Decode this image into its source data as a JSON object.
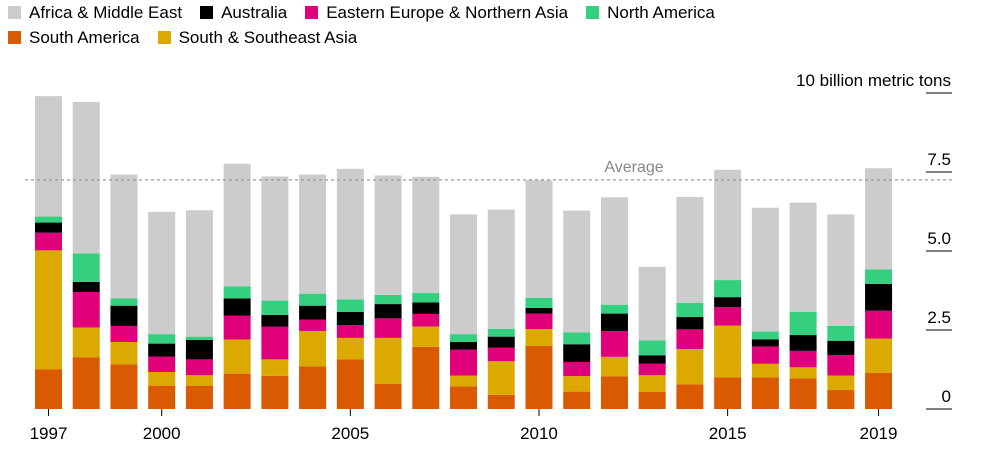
{
  "chart_data": {
    "type": "bar",
    "stacked": true,
    "categories": [
      "1997",
      "1998",
      "1999",
      "2000",
      "2001",
      "2002",
      "2003",
      "2004",
      "2005",
      "2006",
      "2007",
      "2008",
      "2009",
      "2010",
      "2011",
      "2012",
      "2013",
      "2014",
      "2015",
      "2016",
      "2017",
      "2018",
      "2019"
    ],
    "x_tick_labels": [
      "1997",
      "2000",
      "2005",
      "2010",
      "2015",
      "2019"
    ],
    "series": [
      {
        "name": "South America",
        "color": "#d95a00",
        "values": [
          1.25,
          1.63,
          1.41,
          0.74,
          0.74,
          1.12,
          1.05,
          1.35,
          1.57,
          0.8,
          1.97,
          0.72,
          0.45,
          2.0,
          0.55,
          1.03,
          0.54,
          0.78,
          1.0,
          1.0,
          0.97,
          0.6,
          1.15
        ]
      },
      {
        "name": "South & Southeast Asia",
        "color": "#dba900",
        "values": [
          3.77,
          0.95,
          0.71,
          0.43,
          0.33,
          1.08,
          0.52,
          1.12,
          0.68,
          1.45,
          0.64,
          0.34,
          1.06,
          0.53,
          0.49,
          0.62,
          0.53,
          1.12,
          1.64,
          0.43,
          0.35,
          0.46,
          1.08
        ]
      },
      {
        "name": "Eastern Europe & Northern Asia",
        "color": "#e0007a",
        "values": [
          0.56,
          1.12,
          0.51,
          0.49,
          0.5,
          0.75,
          1.04,
          0.36,
          0.41,
          0.62,
          0.4,
          0.82,
          0.43,
          0.49,
          0.45,
          0.82,
          0.37,
          0.62,
          0.58,
          0.55,
          0.52,
          0.65,
          0.88
        ]
      },
      {
        "name": "Australia",
        "color": "#000000",
        "values": [
          0.32,
          0.32,
          0.64,
          0.41,
          0.62,
          0.55,
          0.37,
          0.44,
          0.41,
          0.45,
          0.36,
          0.24,
          0.35,
          0.18,
          0.56,
          0.55,
          0.26,
          0.39,
          0.32,
          0.22,
          0.5,
          0.45,
          0.85
        ]
      },
      {
        "name": "North America",
        "color": "#35d07f",
        "values": [
          0.19,
          0.9,
          0.23,
          0.3,
          0.1,
          0.38,
          0.45,
          0.38,
          0.4,
          0.29,
          0.3,
          0.25,
          0.25,
          0.32,
          0.37,
          0.28,
          0.47,
          0.45,
          0.54,
          0.25,
          0.74,
          0.47,
          0.46
        ]
      },
      {
        "name": "Africa & Middle East",
        "color": "#cccccc",
        "values": [
          3.81,
          4.8,
          3.92,
          3.87,
          4.0,
          3.88,
          3.93,
          3.77,
          4.13,
          3.78,
          3.68,
          3.79,
          3.77,
          3.72,
          3.86,
          3.4,
          2.33,
          3.35,
          3.49,
          3.92,
          3.45,
          3.53,
          3.2
        ]
      }
    ],
    "ylabel": "10 billion metric tons",
    "y_ticks": [
      0,
      2.5,
      5.0,
      7.5,
      10
    ],
    "y_tick_labels": [
      "0",
      "2.5",
      "5.0",
      "7.5",
      "10 billion metric tons"
    ],
    "ylim": [
      0,
      10
    ],
    "average": {
      "label": "Average",
      "value": 7.25
    },
    "legend": "top-left",
    "grid": false
  }
}
